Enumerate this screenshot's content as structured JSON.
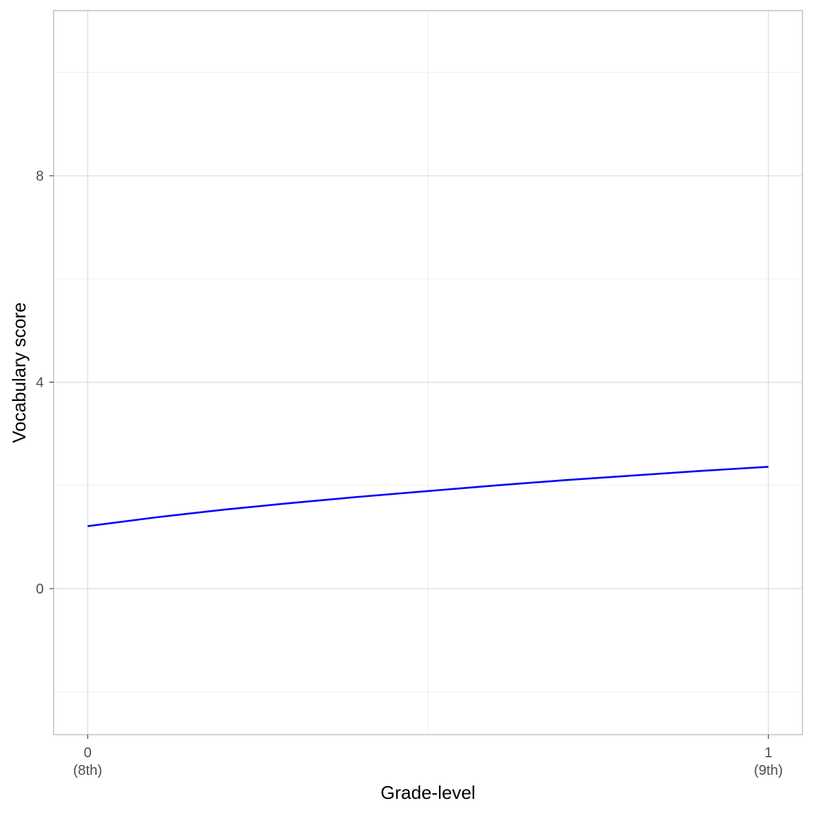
{
  "chart_data": {
    "type": "line",
    "title": "",
    "xlabel": "Grade-level",
    "ylabel": "Vocabulary score",
    "x_ticks": [
      {
        "value": 0,
        "label": "0",
        "sublabel": "(8th)"
      },
      {
        "value": 1,
        "label": "1",
        "sublabel": "(9th)"
      }
    ],
    "y_ticks": [
      0,
      4,
      8
    ],
    "xlim": [
      -0.05,
      1.05
    ],
    "ylim": [
      -2.83,
      11.2
    ],
    "grid": true,
    "series": [
      {
        "color": "#0000ff",
        "x": [
          0,
          0.1,
          0.2,
          0.3,
          0.4,
          0.5,
          0.6,
          0.7,
          0.8,
          0.9,
          1.0
        ],
        "y": [
          1.21,
          1.38,
          1.53,
          1.66,
          1.78,
          1.89,
          2.0,
          2.1,
          2.19,
          2.28,
          2.36
        ]
      }
    ],
    "colors": {
      "grid_major": "#d9d9d9",
      "grid_minor": "#ebebeb",
      "panel_border": "#b3b3b3",
      "tick_text": "#4d4d4d"
    }
  }
}
